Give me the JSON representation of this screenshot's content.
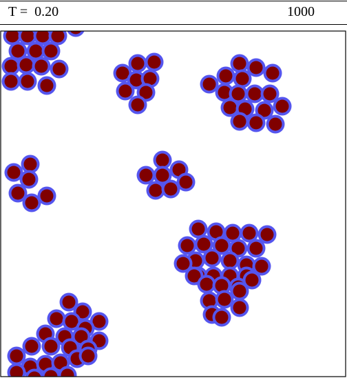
{
  "header": {
    "temperature_label": "T =  0.20",
    "step_count": "1000"
  },
  "colors": {
    "particle_core": "#800000",
    "particle_halo": "#5555ee",
    "box_border": "#000000",
    "background": "#ffffff"
  }
}
